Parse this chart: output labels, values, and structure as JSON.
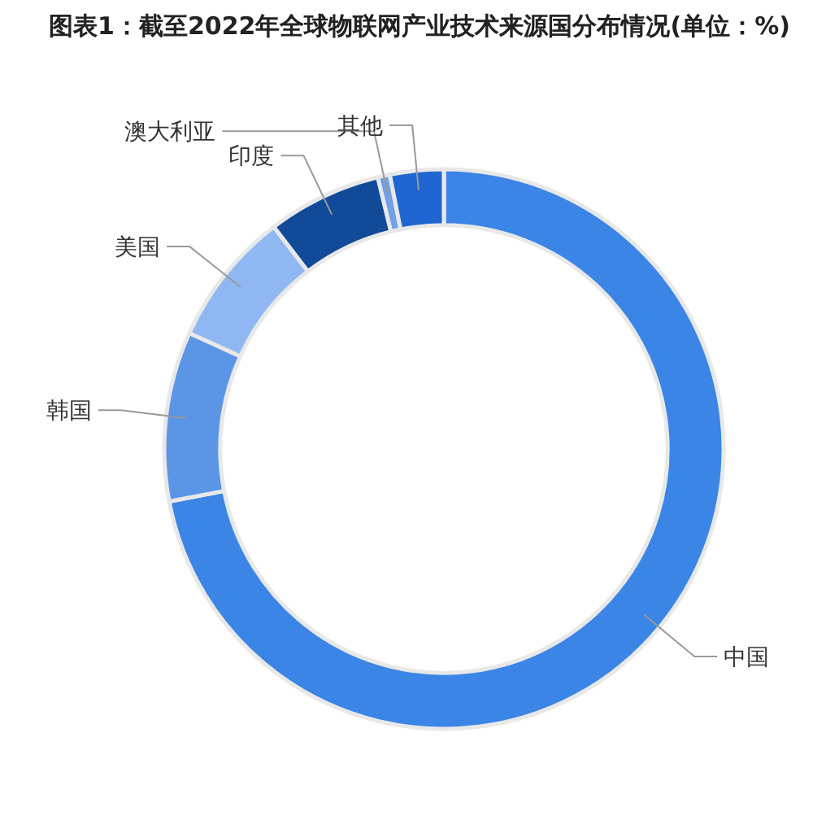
{
  "chart_data": {
    "type": "donut",
    "title": "图表1：截至2022年全球物联网产业技术来源国分布情况(单位：%)",
    "categories": [
      "中国",
      "韩国",
      "美国",
      "印度",
      "澳大利亚",
      "其他"
    ],
    "values": [
      72.0,
      9.8,
      7.8,
      6.6,
      0.7,
      3.1
    ],
    "colors": [
      "#3a85e6",
      "#5b96e6",
      "#8fb8f2",
      "#124a9a",
      "#6fa0e8",
      "#1f66d2"
    ]
  }
}
